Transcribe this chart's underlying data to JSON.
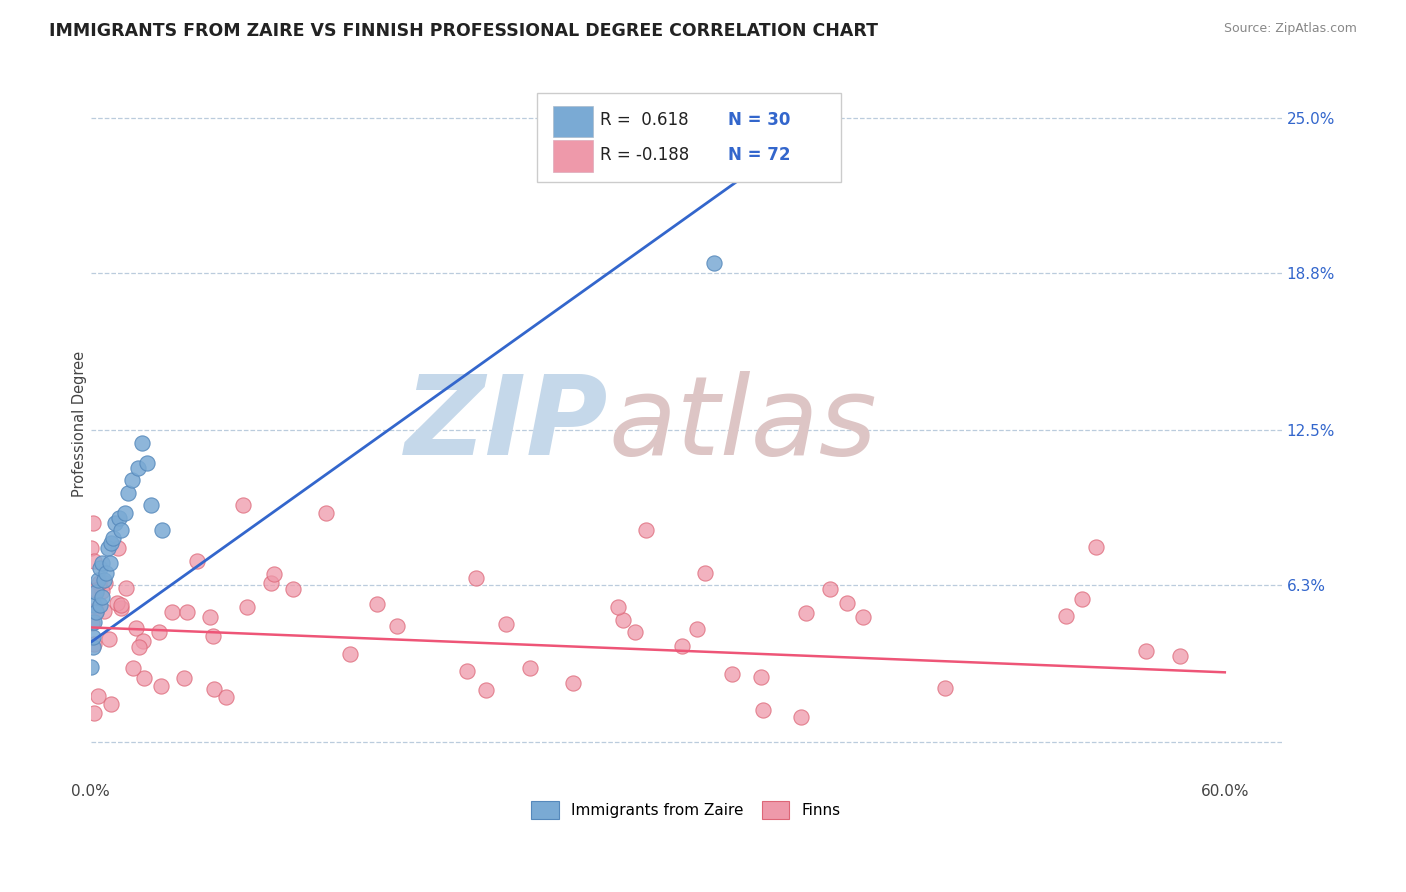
{
  "title": "IMMIGRANTS FROM ZAIRE VS FINNISH PROFESSIONAL DEGREE CORRELATION CHART",
  "source": "Source: ZipAtlas.com",
  "ylabel": "Professional Degree",
  "right_yticks": [
    "25.0%",
    "18.8%",
    "12.5%",
    "6.3%"
  ],
  "right_ytick_vals": [
    0.25,
    0.188,
    0.125,
    0.063
  ],
  "xlim": [
    0.0,
    0.63
  ],
  "ylim": [
    -0.015,
    0.27
  ],
  "background_color": "#ffffff",
  "grid_color": "#bbccdd",
  "blue_color": "#7aaad4",
  "pink_color": "#ee99aa",
  "blue_edge": "#5588bb",
  "pink_edge": "#dd6677",
  "trend_blue_color": "#3366cc",
  "trend_pink_color": "#ee5577",
  "legend_text_color": "#3366cc",
  "legend_r_color": "#3366cc",
  "watermark_zip_color": "#c5d8ea",
  "watermark_atlas_color": "#ddc5c5"
}
